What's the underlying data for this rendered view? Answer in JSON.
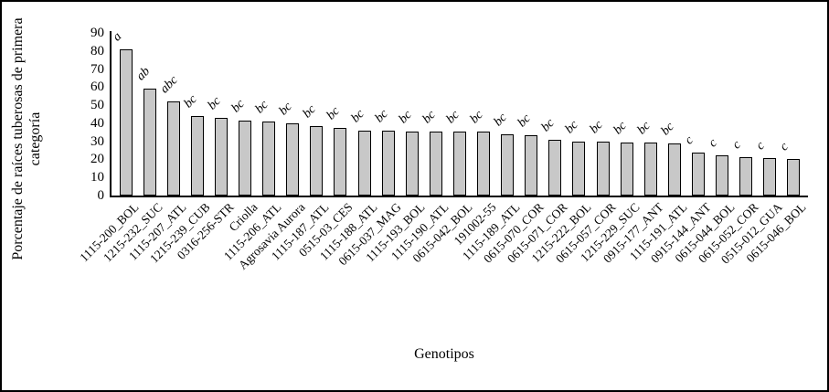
{
  "colors": {
    "background": "#ffffff",
    "frame_border": "#000000",
    "axis": "#000000",
    "text": "#000000",
    "bar_fill": "#c8c8c8",
    "bar_border": "#000000"
  },
  "chart_data": {
    "type": "bar",
    "title": "",
    "xlabel": "Genotipos",
    "ylabel": "Porcentaje de raíces tuberosas de primera\ncategoría",
    "ylim": [
      0,
      90
    ],
    "yticks": [
      0,
      10,
      20,
      30,
      40,
      50,
      60,
      70,
      80,
      90
    ],
    "grid": false,
    "legend": "none",
    "categories": [
      "1115-200_BOL",
      "1215-232_SUC",
      "1115-207_ATL",
      "1215-239_CUB",
      "0316-256-STR",
      "Criolla",
      "1115-206_ATL",
      "Agrosavia Aurora",
      "1115-187_ATL",
      "0515-03_CES",
      "1115-188_ATL",
      "0615-037_MAG",
      "1115-193_BOL",
      "1115-190_ATL",
      "0615-042_BOL",
      "191002-55",
      "1115-189_ATL",
      "0615-070_COR",
      "0615-071_COR",
      "1215-222_BOL",
      "0615-057_COR",
      "1215-229_SUC",
      "0915-177_ANT",
      "1115-191_ATL",
      "0915-144_ANT",
      "0615-044_BOL",
      "0615-052_COR",
      "0515-012_GUA",
      "0615-046_BOL"
    ],
    "values": [
      81,
      59,
      52,
      44,
      43,
      41.5,
      41,
      40,
      38.5,
      37.5,
      36,
      36,
      35.5,
      35.5,
      35.5,
      35.5,
      34,
      33.5,
      31,
      30,
      30,
      29.5,
      29.5,
      29,
      24,
      22,
      21,
      20.5,
      20
    ],
    "significance_letters": [
      "a",
      "ab",
      "abc",
      "bc",
      "bc",
      "bc",
      "bc",
      "bc",
      "bc",
      "bc",
      "bc",
      "bc",
      "bc",
      "bc",
      "bc",
      "bc",
      "bc",
      "bc",
      "bc",
      "bc",
      "bc",
      "bc",
      "bc",
      "bc",
      "c",
      "c",
      "c",
      "c",
      "c"
    ]
  }
}
